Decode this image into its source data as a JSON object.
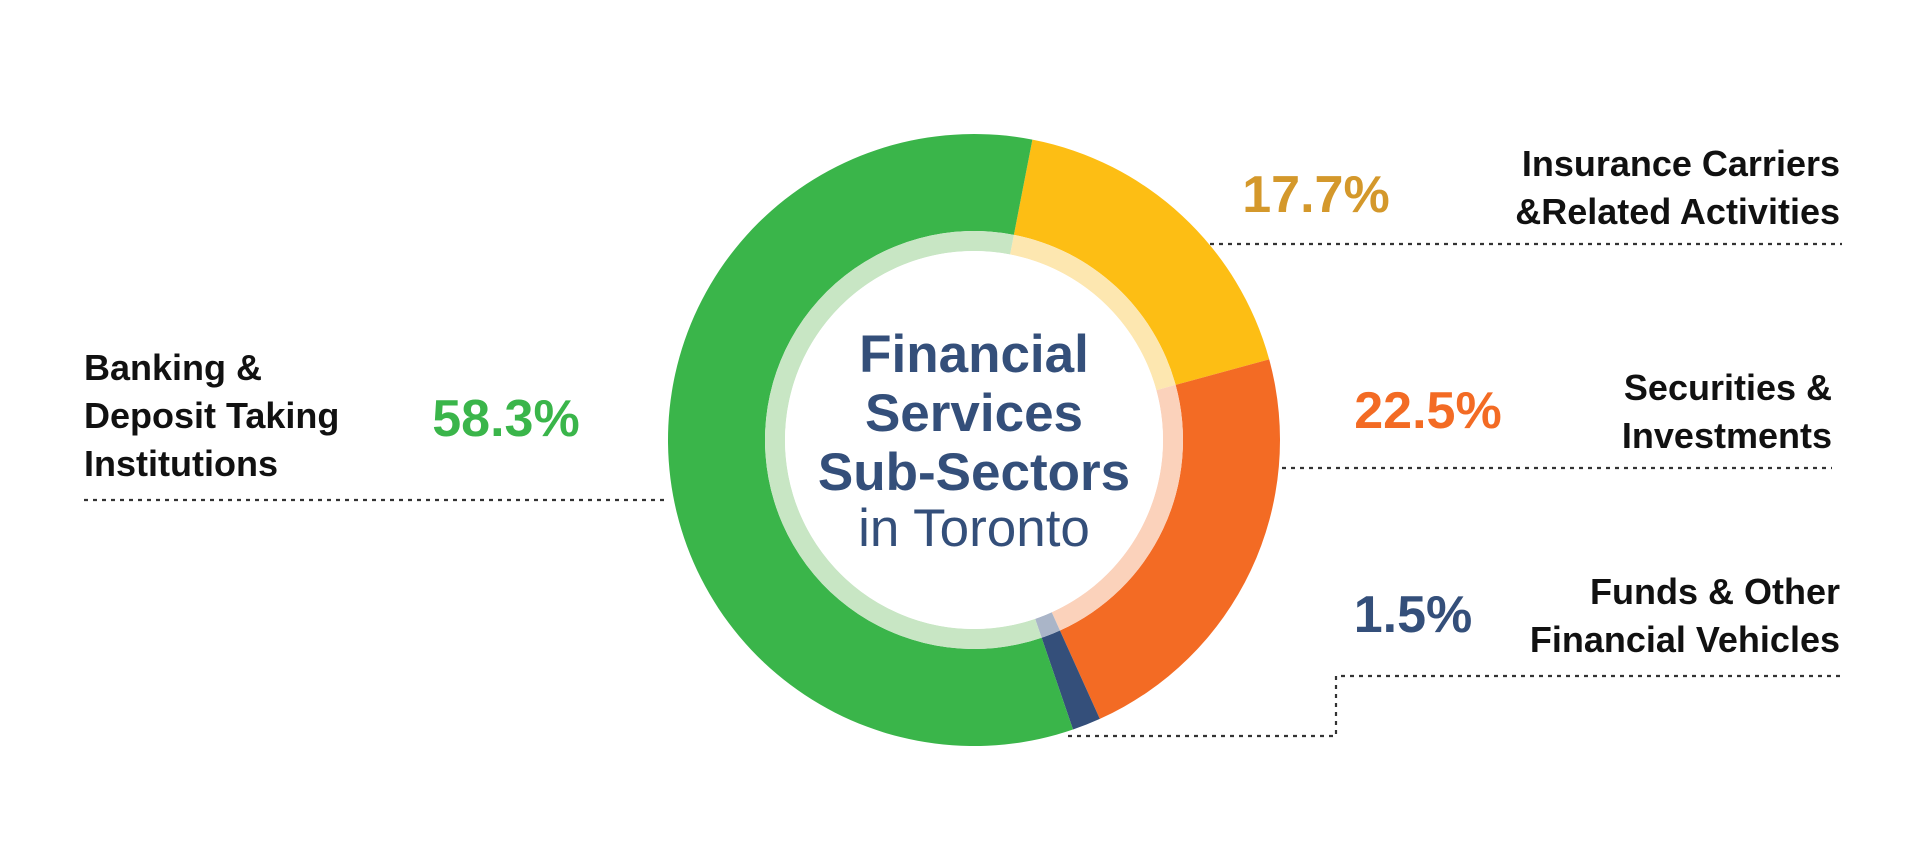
{
  "chart_data": {
    "type": "pie",
    "title": "Financial Services Sub-Sectors",
    "subtitle": "in Toronto",
    "slices": [
      {
        "label_lines": [
          "Banking &",
          "Deposit Taking",
          "Institutions"
        ],
        "value": 58.3,
        "value_label": "58.3%",
        "color": "#3ab54a",
        "inner_color": "#c8e6c4",
        "label_color": "#3ab54a"
      },
      {
        "label_lines": [
          "Insurance Carriers",
          "&Related Activities"
        ],
        "value": 17.7,
        "value_label": "17.7%",
        "color": "#fdbe14",
        "inner_color": "#fde7b0",
        "label_color": "#d4982b"
      },
      {
        "label_lines": [
          "Securities &",
          "Investments"
        ],
        "value": 22.5,
        "value_label": "22.5%",
        "color": "#f36b24",
        "inner_color": "#fbd2bb",
        "label_color": "#f36b24"
      },
      {
        "label_lines": [
          "Funds & Other",
          "Financial Vehicles"
        ],
        "value": 1.5,
        "value_label": "1.5%",
        "color": "#344f7a",
        "inner_color": "#aab5c8",
        "label_color": "#344f7a"
      }
    ],
    "title_color": "#344f7a"
  }
}
